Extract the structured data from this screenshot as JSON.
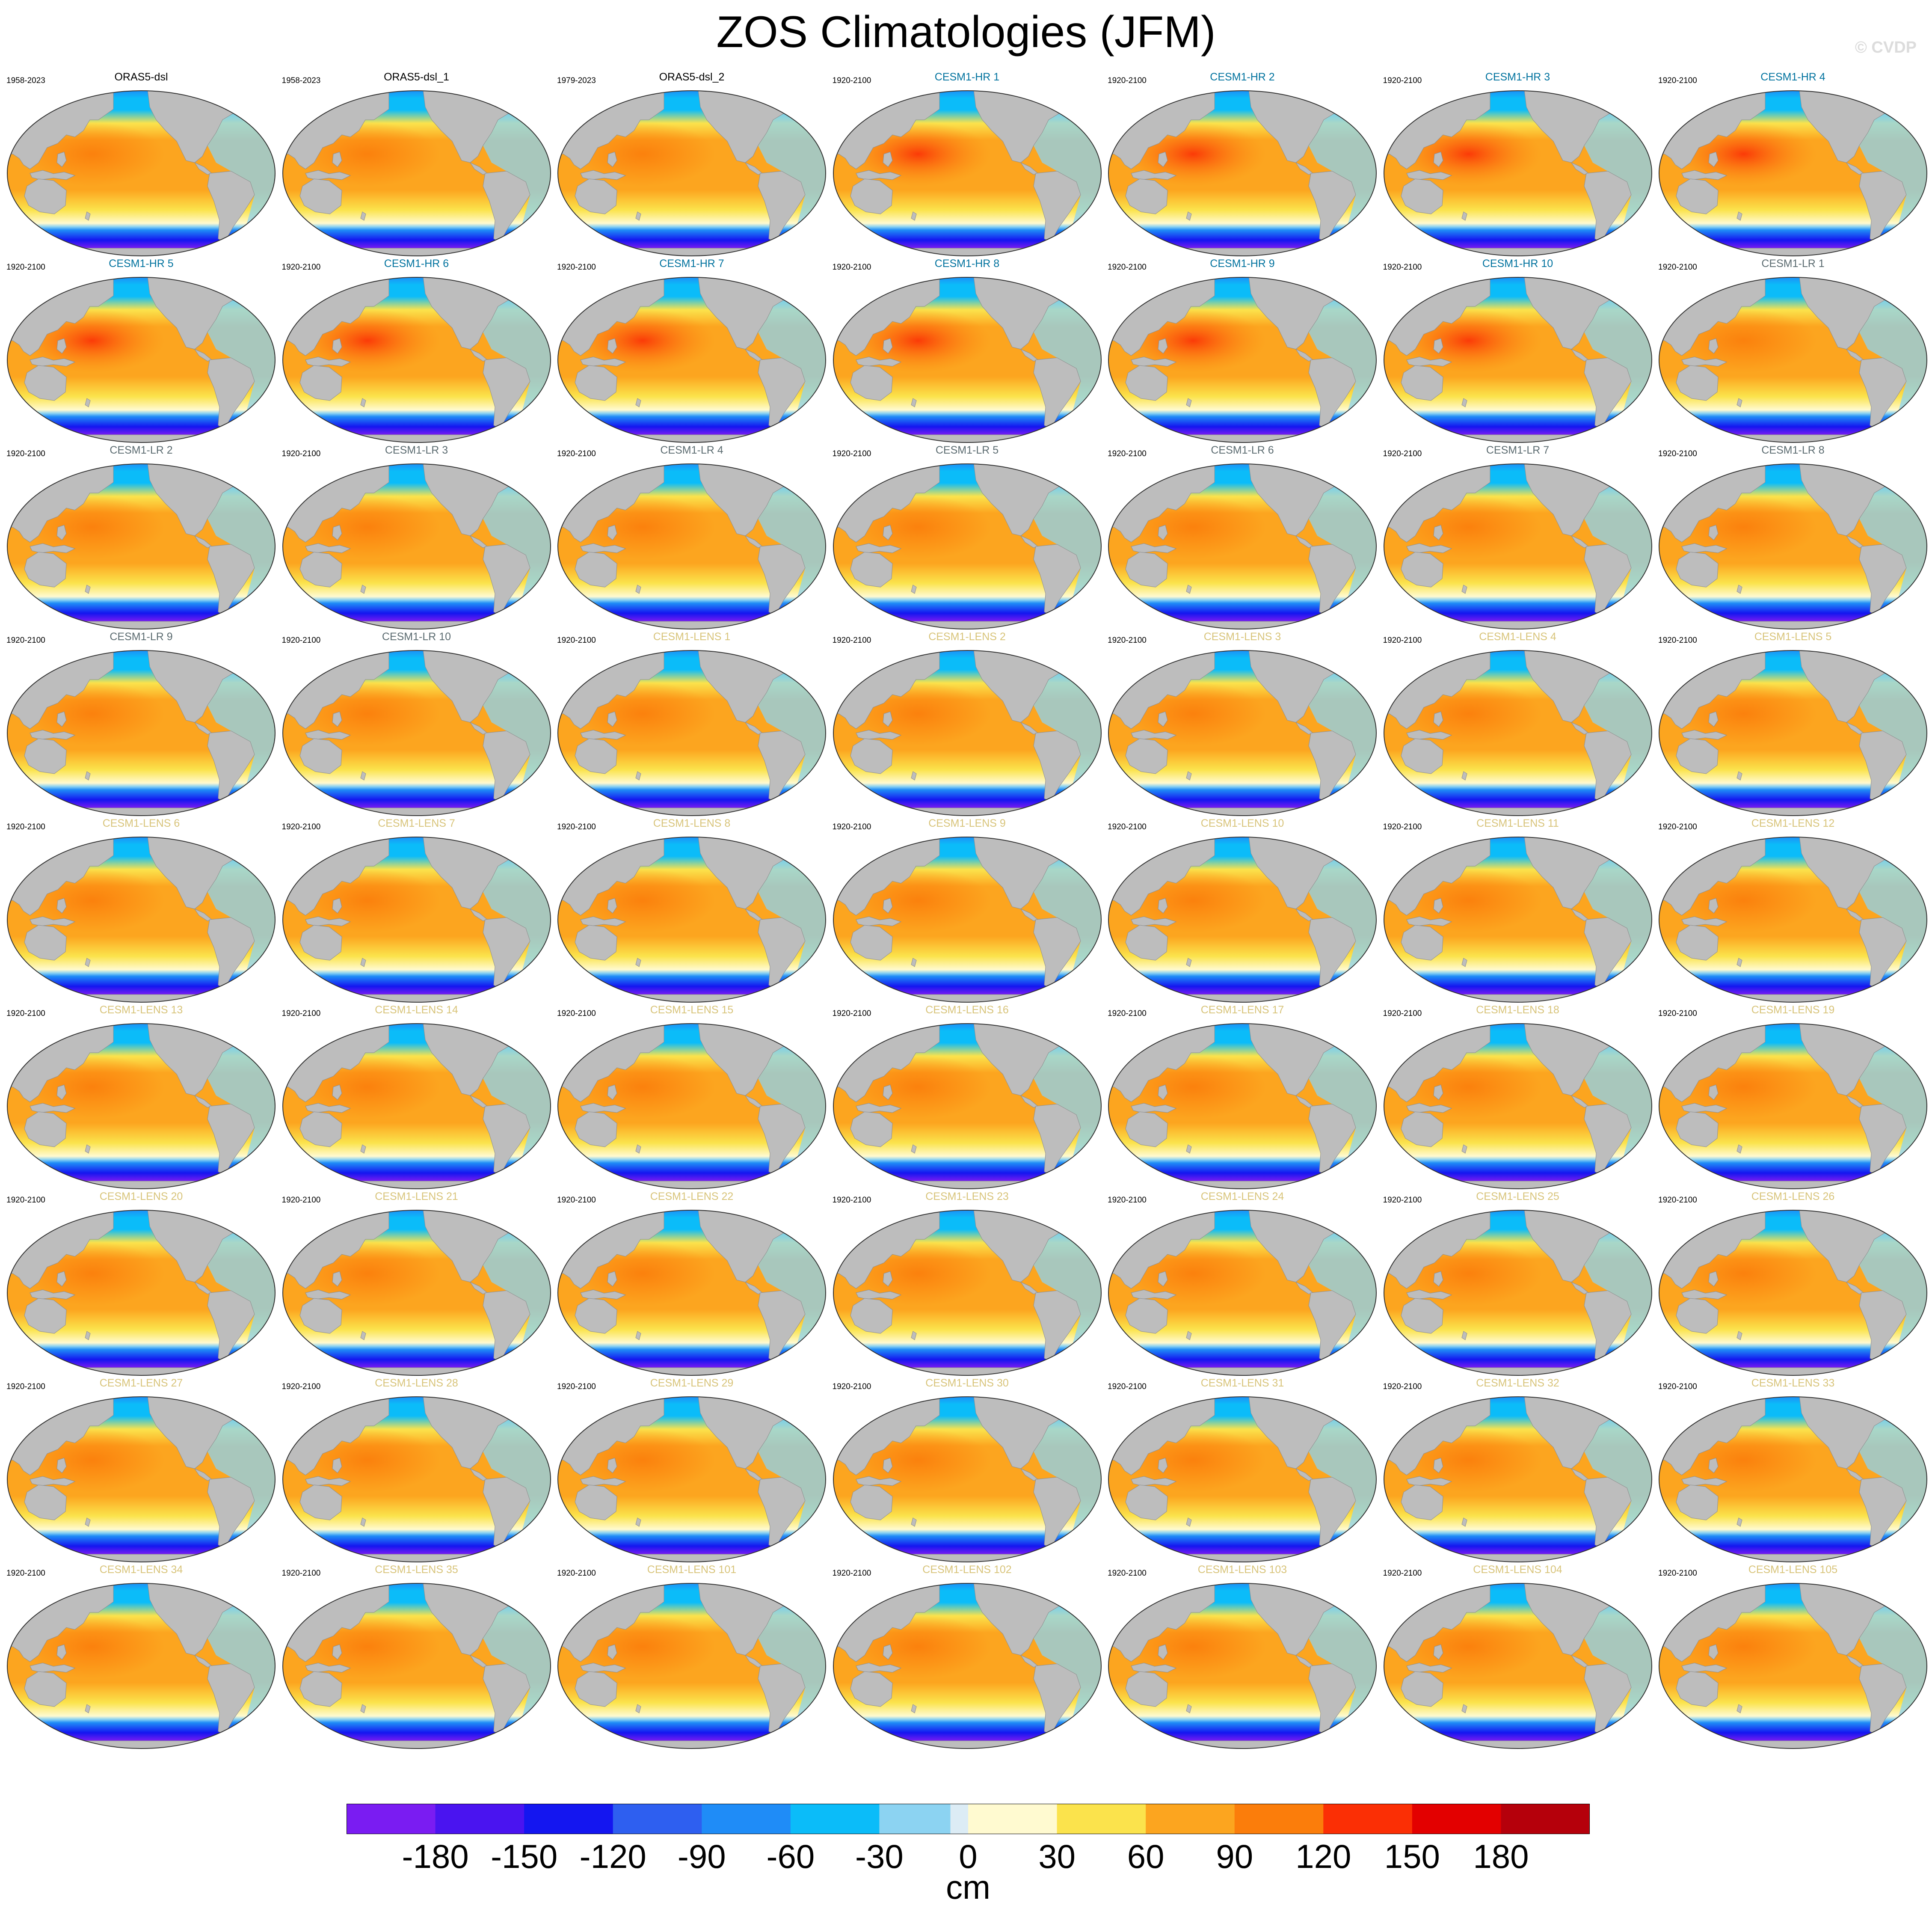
{
  "title": "ZOS Climatologies (JFM)",
  "watermark": "© CVDP",
  "colors": {
    "land": "#bdbdbd",
    "name_observation": "#000000",
    "name_cesm1_hr": "#00729e",
    "name_cesm1_lr": "#5b6b70",
    "name_cesm1_lens": "#d8c47a"
  },
  "panels": [
    {
      "name": "ORAS5-dsl",
      "years": "1958-2023",
      "group": "observation"
    },
    {
      "name": "ORAS5-dsl_1",
      "years": "1958-2023",
      "group": "observation"
    },
    {
      "name": "ORAS5-dsl_2",
      "years": "1979-2023",
      "group": "observation"
    },
    {
      "name": "CESM1-HR 1",
      "years": "1920-2100",
      "group": "cesm1_hr"
    },
    {
      "name": "CESM1-HR 2",
      "years": "1920-2100",
      "group": "cesm1_hr"
    },
    {
      "name": "CESM1-HR 3",
      "years": "1920-2100",
      "group": "cesm1_hr"
    },
    {
      "name": "CESM1-HR 4",
      "years": "1920-2100",
      "group": "cesm1_hr"
    },
    {
      "name": "CESM1-HR 5",
      "years": "1920-2100",
      "group": "cesm1_hr"
    },
    {
      "name": "CESM1-HR 6",
      "years": "1920-2100",
      "group": "cesm1_hr"
    },
    {
      "name": "CESM1-HR 7",
      "years": "1920-2100",
      "group": "cesm1_hr"
    },
    {
      "name": "CESM1-HR 8",
      "years": "1920-2100",
      "group": "cesm1_hr"
    },
    {
      "name": "CESM1-HR 9",
      "years": "1920-2100",
      "group": "cesm1_hr"
    },
    {
      "name": "CESM1-HR 10",
      "years": "1920-2100",
      "group": "cesm1_hr"
    },
    {
      "name": "CESM1-LR 1",
      "years": "1920-2100",
      "group": "cesm1_lr"
    },
    {
      "name": "CESM1-LR 2",
      "years": "1920-2100",
      "group": "cesm1_lr"
    },
    {
      "name": "CESM1-LR 3",
      "years": "1920-2100",
      "group": "cesm1_lr"
    },
    {
      "name": "CESM1-LR 4",
      "years": "1920-2100",
      "group": "cesm1_lr"
    },
    {
      "name": "CESM1-LR 5",
      "years": "1920-2100",
      "group": "cesm1_lr"
    },
    {
      "name": "CESM1-LR 6",
      "years": "1920-2100",
      "group": "cesm1_lr"
    },
    {
      "name": "CESM1-LR 7",
      "years": "1920-2100",
      "group": "cesm1_lr"
    },
    {
      "name": "CESM1-LR 8",
      "years": "1920-2100",
      "group": "cesm1_lr"
    },
    {
      "name": "CESM1-LR 9",
      "years": "1920-2100",
      "group": "cesm1_lr"
    },
    {
      "name": "CESM1-LR 10",
      "years": "1920-2100",
      "group": "cesm1_lr"
    },
    {
      "name": "CESM1-LENS 1",
      "years": "1920-2100",
      "group": "cesm1_lens"
    },
    {
      "name": "CESM1-LENS 2",
      "years": "1920-2100",
      "group": "cesm1_lens"
    },
    {
      "name": "CESM1-LENS 3",
      "years": "1920-2100",
      "group": "cesm1_lens"
    },
    {
      "name": "CESM1-LENS 4",
      "years": "1920-2100",
      "group": "cesm1_lens"
    },
    {
      "name": "CESM1-LENS 5",
      "years": "1920-2100",
      "group": "cesm1_lens"
    },
    {
      "name": "CESM1-LENS 6",
      "years": "1920-2100",
      "group": "cesm1_lens"
    },
    {
      "name": "CESM1-LENS 7",
      "years": "1920-2100",
      "group": "cesm1_lens"
    },
    {
      "name": "CESM1-LENS 8",
      "years": "1920-2100",
      "group": "cesm1_lens"
    },
    {
      "name": "CESM1-LENS 9",
      "years": "1920-2100",
      "group": "cesm1_lens"
    },
    {
      "name": "CESM1-LENS 10",
      "years": "1920-2100",
      "group": "cesm1_lens"
    },
    {
      "name": "CESM1-LENS 11",
      "years": "1920-2100",
      "group": "cesm1_lens"
    },
    {
      "name": "CESM1-LENS 12",
      "years": "1920-2100",
      "group": "cesm1_lens"
    },
    {
      "name": "CESM1-LENS 13",
      "years": "1920-2100",
      "group": "cesm1_lens"
    },
    {
      "name": "CESM1-LENS 14",
      "years": "1920-2100",
      "group": "cesm1_lens"
    },
    {
      "name": "CESM1-LENS 15",
      "years": "1920-2100",
      "group": "cesm1_lens"
    },
    {
      "name": "CESM1-LENS 16",
      "years": "1920-2100",
      "group": "cesm1_lens"
    },
    {
      "name": "CESM1-LENS 17",
      "years": "1920-2100",
      "group": "cesm1_lens"
    },
    {
      "name": "CESM1-LENS 18",
      "years": "1920-2100",
      "group": "cesm1_lens"
    },
    {
      "name": "CESM1-LENS 19",
      "years": "1920-2100",
      "group": "cesm1_lens"
    },
    {
      "name": "CESM1-LENS 20",
      "years": "1920-2100",
      "group": "cesm1_lens"
    },
    {
      "name": "CESM1-LENS 21",
      "years": "1920-2100",
      "group": "cesm1_lens"
    },
    {
      "name": "CESM1-LENS 22",
      "years": "1920-2100",
      "group": "cesm1_lens"
    },
    {
      "name": "CESM1-LENS 23",
      "years": "1920-2100",
      "group": "cesm1_lens"
    },
    {
      "name": "CESM1-LENS 24",
      "years": "1920-2100",
      "group": "cesm1_lens"
    },
    {
      "name": "CESM1-LENS 25",
      "years": "1920-2100",
      "group": "cesm1_lens"
    },
    {
      "name": "CESM1-LENS 26",
      "years": "1920-2100",
      "group": "cesm1_lens"
    },
    {
      "name": "CESM1-LENS 27",
      "years": "1920-2100",
      "group": "cesm1_lens"
    },
    {
      "name": "CESM1-LENS 28",
      "years": "1920-2100",
      "group": "cesm1_lens"
    },
    {
      "name": "CESM1-LENS 29",
      "years": "1920-2100",
      "group": "cesm1_lens"
    },
    {
      "name": "CESM1-LENS 30",
      "years": "1920-2100",
      "group": "cesm1_lens"
    },
    {
      "name": "CESM1-LENS 31",
      "years": "1920-2100",
      "group": "cesm1_lens"
    },
    {
      "name": "CESM1-LENS 32",
      "years": "1920-2100",
      "group": "cesm1_lens"
    },
    {
      "name": "CESM1-LENS 33",
      "years": "1920-2100",
      "group": "cesm1_lens"
    },
    {
      "name": "CESM1-LENS 34",
      "years": "1920-2100",
      "group": "cesm1_lens"
    },
    {
      "name": "CESM1-LENS 35",
      "years": "1920-2100",
      "group": "cesm1_lens"
    },
    {
      "name": "CESM1-LENS 101",
      "years": "1920-2100",
      "group": "cesm1_lens"
    },
    {
      "name": "CESM1-LENS 102",
      "years": "1920-2100",
      "group": "cesm1_lens"
    },
    {
      "name": "CESM1-LENS 103",
      "years": "1920-2100",
      "group": "cesm1_lens"
    },
    {
      "name": "CESM1-LENS 104",
      "years": "1920-2100",
      "group": "cesm1_lens"
    },
    {
      "name": "CESM1-LENS 105",
      "years": "1920-2100",
      "group": "cesm1_lens"
    }
  ],
  "colorbar": {
    "unit": "cm",
    "min": -210,
    "max": 210,
    "step": 6,
    "tick_labels": [
      "-180",
      "-150",
      "-120",
      "-90",
      "-60",
      "-30",
      "0",
      "30",
      "60",
      "90",
      "120",
      "150",
      "180"
    ],
    "tick_values": [
      -180,
      -150,
      -120,
      -90,
      -60,
      -30,
      0,
      30,
      60,
      90,
      120,
      150,
      180
    ],
    "color_stops": [
      {
        "value": -210,
        "color": "#7a1cf2"
      },
      {
        "value": -180,
        "color": "#4a14f0"
      },
      {
        "value": -150,
        "color": "#1416f0"
      },
      {
        "value": -120,
        "color": "#2e5ff0"
      },
      {
        "value": -90,
        "color": "#1f8cf7"
      },
      {
        "value": -60,
        "color": "#0bbcf9"
      },
      {
        "value": -30,
        "color": "#8cd3f2"
      },
      {
        "value": -6,
        "color": "#dcecf5"
      },
      {
        "value": 0,
        "color": "#fffad0"
      },
      {
        "value": 30,
        "color": "#fbe34c"
      },
      {
        "value": 60,
        "color": "#fca51f"
      },
      {
        "value": 90,
        "color": "#fb7d0b"
      },
      {
        "value": 120,
        "color": "#fb2f05"
      },
      {
        "value": 150,
        "color": "#e30000"
      },
      {
        "value": 180,
        "color": "#b5000b"
      },
      {
        "value": 210,
        "color": "#f9b4b4"
      }
    ]
  }
}
